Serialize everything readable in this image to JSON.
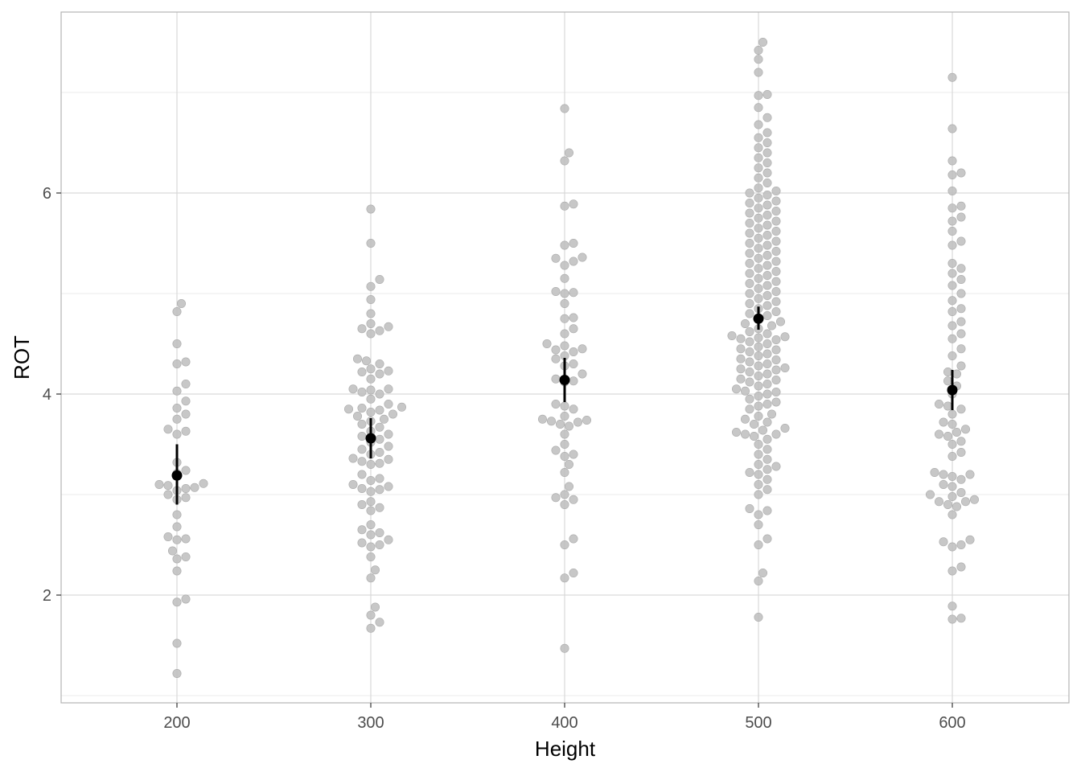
{
  "chart_data": {
    "type": "scatter",
    "subtype": "beeswarm with mean and error bars",
    "xlabel": "Height",
    "ylabel": "ROT",
    "xlim": [
      140,
      660
    ],
    "ylim": [
      0.95,
      7.8
    ],
    "x_ticks": [
      200,
      300,
      400,
      500,
      600
    ],
    "y_ticks": [
      2,
      4,
      6
    ],
    "y_minor_ticks": [
      1,
      3,
      5,
      7
    ],
    "grid": true,
    "legend": "none",
    "colors": {
      "points": "#bdbdbd",
      "summary": "#000000",
      "grid_major": "#d9d9d9",
      "grid_minor": "#ebebeb",
      "panel_border": "#b3b3b3"
    },
    "summary": [
      {
        "x": 200,
        "mean": 3.19,
        "lower": 2.9,
        "upper": 3.5
      },
      {
        "x": 300,
        "mean": 3.56,
        "lower": 3.36,
        "upper": 3.76
      },
      {
        "x": 400,
        "mean": 4.14,
        "lower": 3.92,
        "upper": 4.36
      },
      {
        "x": 500,
        "mean": 4.75,
        "lower": 4.64,
        "upper": 4.87
      },
      {
        "x": 600,
        "mean": 4.04,
        "lower": 3.84,
        "upper": 4.24
      }
    ],
    "groups": [
      {
        "x": 200,
        "values": [
          1.22,
          1.52,
          1.93,
          1.96,
          2.24,
          2.36,
          2.38,
          2.44,
          2.55,
          2.56,
          2.58,
          2.68,
          2.8,
          2.95,
          2.97,
          3.0,
          3.04,
          3.06,
          3.07,
          3.09,
          3.1,
          3.11,
          3.21,
          3.24,
          3.32,
          3.6,
          3.63,
          3.65,
          3.75,
          3.8,
          3.86,
          3.93,
          4.03,
          4.1,
          4.3,
          4.32,
          4.5,
          4.82,
          4.9
        ]
      },
      {
        "x": 300,
        "values": [
          1.67,
          1.73,
          1.8,
          1.88,
          2.17,
          2.25,
          2.38,
          2.48,
          2.5,
          2.52,
          2.55,
          2.6,
          2.62,
          2.65,
          2.7,
          2.84,
          2.87,
          2.9,
          2.93,
          3.03,
          3.05,
          3.06,
          3.08,
          3.1,
          3.14,
          3.16,
          3.2,
          3.3,
          3.31,
          3.33,
          3.35,
          3.36,
          3.4,
          3.42,
          3.45,
          3.48,
          3.52,
          3.55,
          3.58,
          3.6,
          3.63,
          3.67,
          3.7,
          3.73,
          3.75,
          3.78,
          3.8,
          3.82,
          3.84,
          3.85,
          3.86,
          3.87,
          3.9,
          3.95,
          4.0,
          4.02,
          4.04,
          4.05,
          4.05,
          4.15,
          4.2,
          4.22,
          4.23,
          4.25,
          4.3,
          4.33,
          4.35,
          4.6,
          4.63,
          4.65,
          4.67,
          4.7,
          4.8,
          4.94,
          5.07,
          5.14,
          5.5,
          5.84
        ]
      },
      {
        "x": 400,
        "values": [
          1.47,
          2.17,
          2.22,
          2.5,
          2.56,
          2.9,
          2.95,
          2.97,
          3.0,
          3.08,
          3.22,
          3.3,
          3.38,
          3.4,
          3.44,
          3.5,
          3.6,
          3.68,
          3.7,
          3.72,
          3.73,
          3.74,
          3.75,
          3.78,
          3.85,
          3.88,
          3.9,
          4.12,
          4.13,
          4.15,
          4.2,
          4.28,
          4.3,
          4.35,
          4.38,
          4.42,
          4.44,
          4.45,
          4.48,
          4.5,
          4.6,
          4.65,
          4.75,
          4.76,
          4.9,
          5.0,
          5.01,
          5.02,
          5.15,
          5.28,
          5.32,
          5.35,
          5.36,
          5.48,
          5.5,
          5.87,
          5.89,
          6.32,
          6.4,
          6.84
        ]
      },
      {
        "x": 500,
        "values": [
          1.78,
          2.14,
          2.22,
          2.5,
          2.56,
          2.7,
          2.8,
          2.84,
          2.86,
          3.0,
          3.05,
          3.1,
          3.15,
          3.2,
          3.22,
          3.25,
          3.28,
          3.3,
          3.35,
          3.4,
          3.45,
          3.5,
          3.55,
          3.58,
          3.6,
          3.6,
          3.62,
          3.64,
          3.66,
          3.7,
          3.72,
          3.75,
          3.78,
          3.8,
          3.85,
          3.88,
          3.9,
          3.92,
          3.95,
          3.98,
          4.0,
          4.02,
          4.03,
          4.05,
          4.08,
          4.1,
          4.12,
          4.14,
          4.15,
          4.18,
          4.2,
          4.22,
          4.24,
          4.25,
          4.26,
          4.28,
          4.3,
          4.32,
          4.34,
          4.35,
          4.38,
          4.4,
          4.42,
          4.44,
          4.45,
          4.47,
          4.5,
          4.52,
          4.54,
          4.55,
          4.56,
          4.57,
          4.58,
          4.6,
          4.62,
          4.65,
          4.68,
          4.7,
          4.72,
          4.75,
          4.78,
          4.8,
          4.82,
          4.85,
          4.88,
          4.9,
          4.92,
          4.95,
          4.98,
          5.0,
          5.02,
          5.05,
          5.08,
          5.1,
          5.12,
          5.15,
          5.18,
          5.2,
          5.22,
          5.25,
          5.28,
          5.3,
          5.32,
          5.35,
          5.38,
          5.4,
          5.42,
          5.45,
          5.48,
          5.5,
          5.52,
          5.55,
          5.58,
          5.6,
          5.62,
          5.65,
          5.68,
          5.7,
          5.72,
          5.75,
          5.78,
          5.8,
          5.82,
          5.85,
          5.88,
          5.9,
          5.92,
          5.95,
          5.98,
          6.0,
          6.02,
          6.05,
          6.1,
          6.15,
          6.2,
          6.25,
          6.3,
          6.35,
          6.4,
          6.45,
          6.5,
          6.55,
          6.6,
          6.68,
          6.75,
          6.85,
          6.97,
          6.98,
          7.2,
          7.33,
          7.42,
          7.5
        ]
      },
      {
        "x": 600,
        "values": [
          1.76,
          1.77,
          1.89,
          2.24,
          2.28,
          2.48,
          2.5,
          2.53,
          2.55,
          2.8,
          2.88,
          2.9,
          2.93,
          2.93,
          2.95,
          2.98,
          3.0,
          3.02,
          3.08,
          3.1,
          3.15,
          3.18,
          3.2,
          3.2,
          3.22,
          3.38,
          3.42,
          3.5,
          3.53,
          3.58,
          3.6,
          3.62,
          3.65,
          3.7,
          3.72,
          3.8,
          3.85,
          3.88,
          3.9,
          4.0,
          4.08,
          4.13,
          4.2,
          4.22,
          4.28,
          4.38,
          4.45,
          4.55,
          4.6,
          4.68,
          4.72,
          4.82,
          4.85,
          4.93,
          5.0,
          5.08,
          5.14,
          5.2,
          5.25,
          5.3,
          5.48,
          5.52,
          5.62,
          5.72,
          5.76,
          5.85,
          5.87,
          6.02,
          6.18,
          6.2,
          6.32,
          6.64,
          7.15
        ]
      }
    ]
  }
}
